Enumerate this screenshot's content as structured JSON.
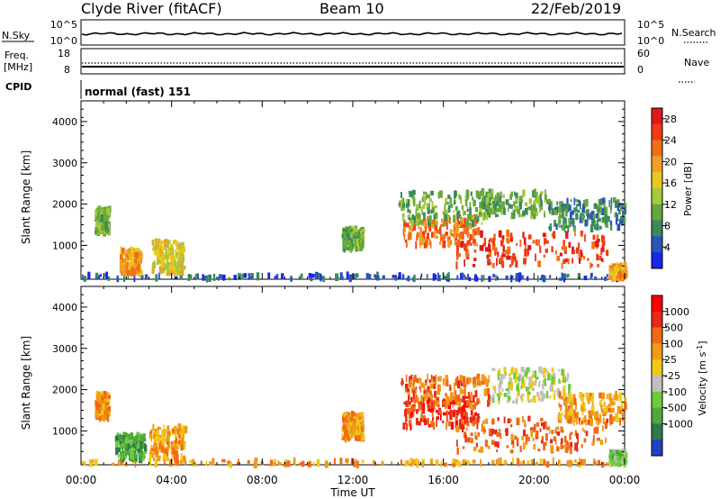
{
  "header": {
    "site": "Clyde River (fitACF)",
    "beam": "Beam 10",
    "date": "22/Feb/2019"
  },
  "noise_panel": {
    "left_label": "N.Sky",
    "left_ticks": [
      "10^5",
      "10^0"
    ],
    "right_ticks": [
      "10^5",
      "10^0"
    ],
    "right_label": "N.Search"
  },
  "freq_panel": {
    "left_label_1": "Freq.",
    "left_label_2": "[MHz]",
    "left_ticks": [
      "18",
      "8"
    ],
    "right_ticks": [
      "60",
      "0"
    ],
    "right_label": "Nave"
  },
  "cpid_panel": {
    "label": "CPID",
    "mode": "normal (fast) 151"
  },
  "x_axis": {
    "title": "Time UT",
    "ticks": [
      "00:00",
      "04:00",
      "08:00",
      "12:00",
      "16:00",
      "20:00",
      "00:00"
    ]
  },
  "chart_data": [
    {
      "type": "heatmap",
      "name": "power",
      "x_range_hours": [
        0,
        24
      ],
      "y_range_km": [
        180,
        4500
      ],
      "ylabel": "Slant Range [km]",
      "yticks": [
        "1000",
        "2000",
        "3000",
        "4000"
      ],
      "colorbar": {
        "label": "Power [dB]",
        "tick_labels": [
          "4",
          "8",
          "12",
          "16",
          "20",
          "24",
          "28"
        ],
        "colors": [
          "#1c24e6",
          "#2a55b8",
          "#3a8a5e",
          "#66a83a",
          "#a6c83a",
          "#e8c81e",
          "#f0a024",
          "#f07018",
          "#f03c14",
          "#e01818"
        ],
        "range": [
          0,
          30
        ]
      },
      "regions": [
        {
          "t0": 0.0,
          "t1": 24.0,
          "r0": 180,
          "r1": 280,
          "level": 1
        },
        {
          "t0": 0.6,
          "t1": 1.2,
          "r0": 1300,
          "r1": 1900,
          "level": 3
        },
        {
          "t0": 1.7,
          "t1": 2.6,
          "r0": 300,
          "r1": 900,
          "level": 6
        },
        {
          "t0": 3.1,
          "t1": 4.5,
          "r0": 300,
          "r1": 1100,
          "level": 5
        },
        {
          "t0": 11.5,
          "t1": 12.4,
          "r0": 900,
          "r1": 1400,
          "level": 3
        },
        {
          "t0": 14.2,
          "t1": 17.5,
          "r0": 1000,
          "r1": 1700,
          "level": 7
        },
        {
          "t0": 14.0,
          "t1": 18.0,
          "r0": 1500,
          "r1": 2300,
          "level": 3
        },
        {
          "t0": 16.5,
          "t1": 23.2,
          "r0": 500,
          "r1": 1300,
          "level": 8
        },
        {
          "t0": 17.5,
          "t1": 20.5,
          "r0": 1700,
          "r1": 2300,
          "level": 3
        },
        {
          "t0": 20.5,
          "t1": 24.0,
          "r0": 1400,
          "r1": 2100,
          "level": 2
        },
        {
          "t0": 23.3,
          "t1": 24.0,
          "r0": 200,
          "r1": 500,
          "level": 6
        }
      ]
    },
    {
      "type": "heatmap",
      "name": "velocity",
      "x_range_hours": [
        0,
        24
      ],
      "y_range_km": [
        180,
        4500
      ],
      "ylabel": "Slant Range [km]",
      "yticks": [
        "1000",
        "2000",
        "3000",
        "4000"
      ],
      "colorbar": {
        "label": "Velocity [m s^-1]",
        "tick_labels": [
          "1000",
          "500",
          "100",
          "25",
          "-25",
          "-100",
          "-500",
          "-1000"
        ],
        "colors": [
          "#2040c8",
          "#2e7a4a",
          "#4ea83a",
          "#6ccc3a",
          "#c0c0c0",
          "#f0c818",
          "#f09a18",
          "#f06a14",
          "#e82818",
          "#ff0000"
        ]
      },
      "regions": [
        {
          "t0": 0.0,
          "t1": 24.0,
          "r0": 180,
          "r1": 280,
          "level": 6
        },
        {
          "t0": 0.6,
          "t1": 1.2,
          "r0": 1300,
          "r1": 1900,
          "level": 6
        },
        {
          "t0": 1.5,
          "t1": 2.8,
          "r0": 300,
          "r1": 900,
          "level": 2
        },
        {
          "t0": 3.0,
          "t1": 4.6,
          "r0": 300,
          "r1": 1100,
          "level": 6
        },
        {
          "t0": 11.5,
          "t1": 12.4,
          "r0": 800,
          "r1": 1400,
          "level": 6
        },
        {
          "t0": 14.2,
          "t1": 17.5,
          "r0": 1100,
          "r1": 1800,
          "level": 8
        },
        {
          "t0": 14.0,
          "t1": 18.0,
          "r0": 1600,
          "r1": 2300,
          "level": 7
        },
        {
          "t0": 16.5,
          "t1": 23.2,
          "r0": 500,
          "r1": 1300,
          "level": 7
        },
        {
          "t0": 18.0,
          "t1": 21.5,
          "r0": 1700,
          "r1": 2500,
          "level": 4
        },
        {
          "t0": 21.0,
          "t1": 24.0,
          "r0": 1200,
          "r1": 1900,
          "level": 6
        },
        {
          "t0": 23.3,
          "t1": 24.0,
          "r0": 200,
          "r1": 500,
          "level": 3
        }
      ]
    }
  ]
}
